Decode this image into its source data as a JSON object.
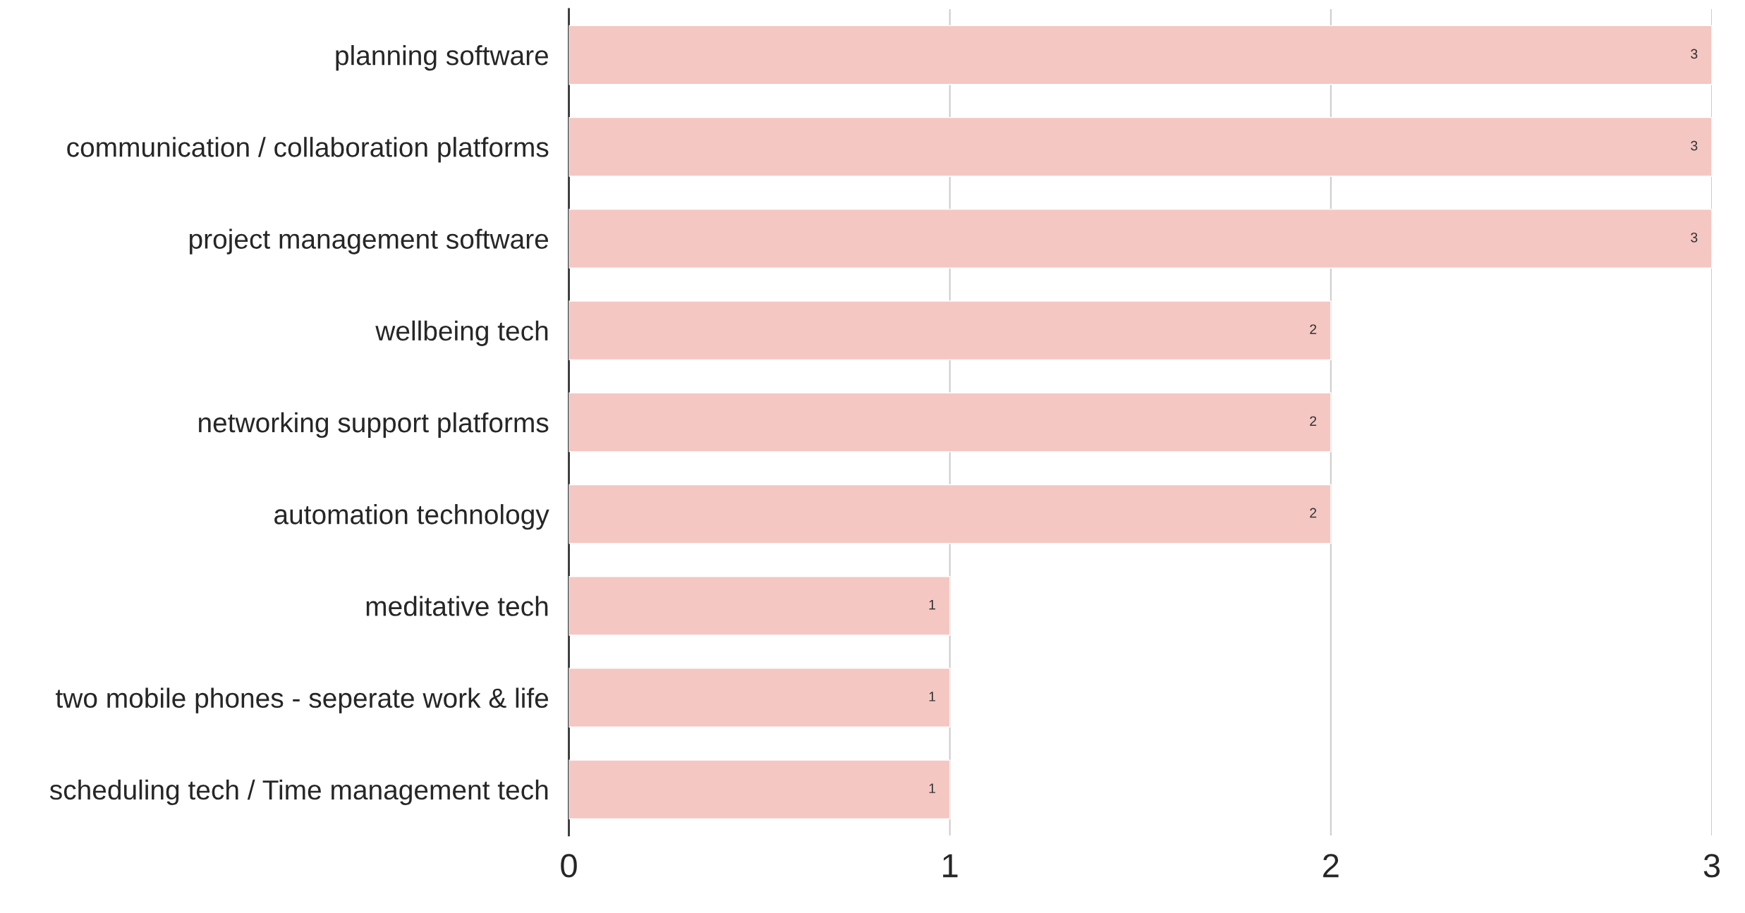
{
  "chart_data": {
    "type": "bar",
    "orientation": "horizontal",
    "categories": [
      "planning software",
      "communication / collaboration platforms",
      "project management software",
      "wellbeing tech",
      "networking support platforms",
      "automation technology",
      "meditative tech",
      "two mobile phones - seperate work & life",
      "scheduling tech / Time management tech"
    ],
    "values": [
      3,
      3,
      3,
      2,
      2,
      2,
      1,
      1,
      1
    ],
    "color": "#f4c7c3",
    "xlim": [
      0,
      3
    ],
    "xticks": [
      0,
      1,
      2,
      3
    ],
    "grid": "x",
    "data_labels": true
  }
}
